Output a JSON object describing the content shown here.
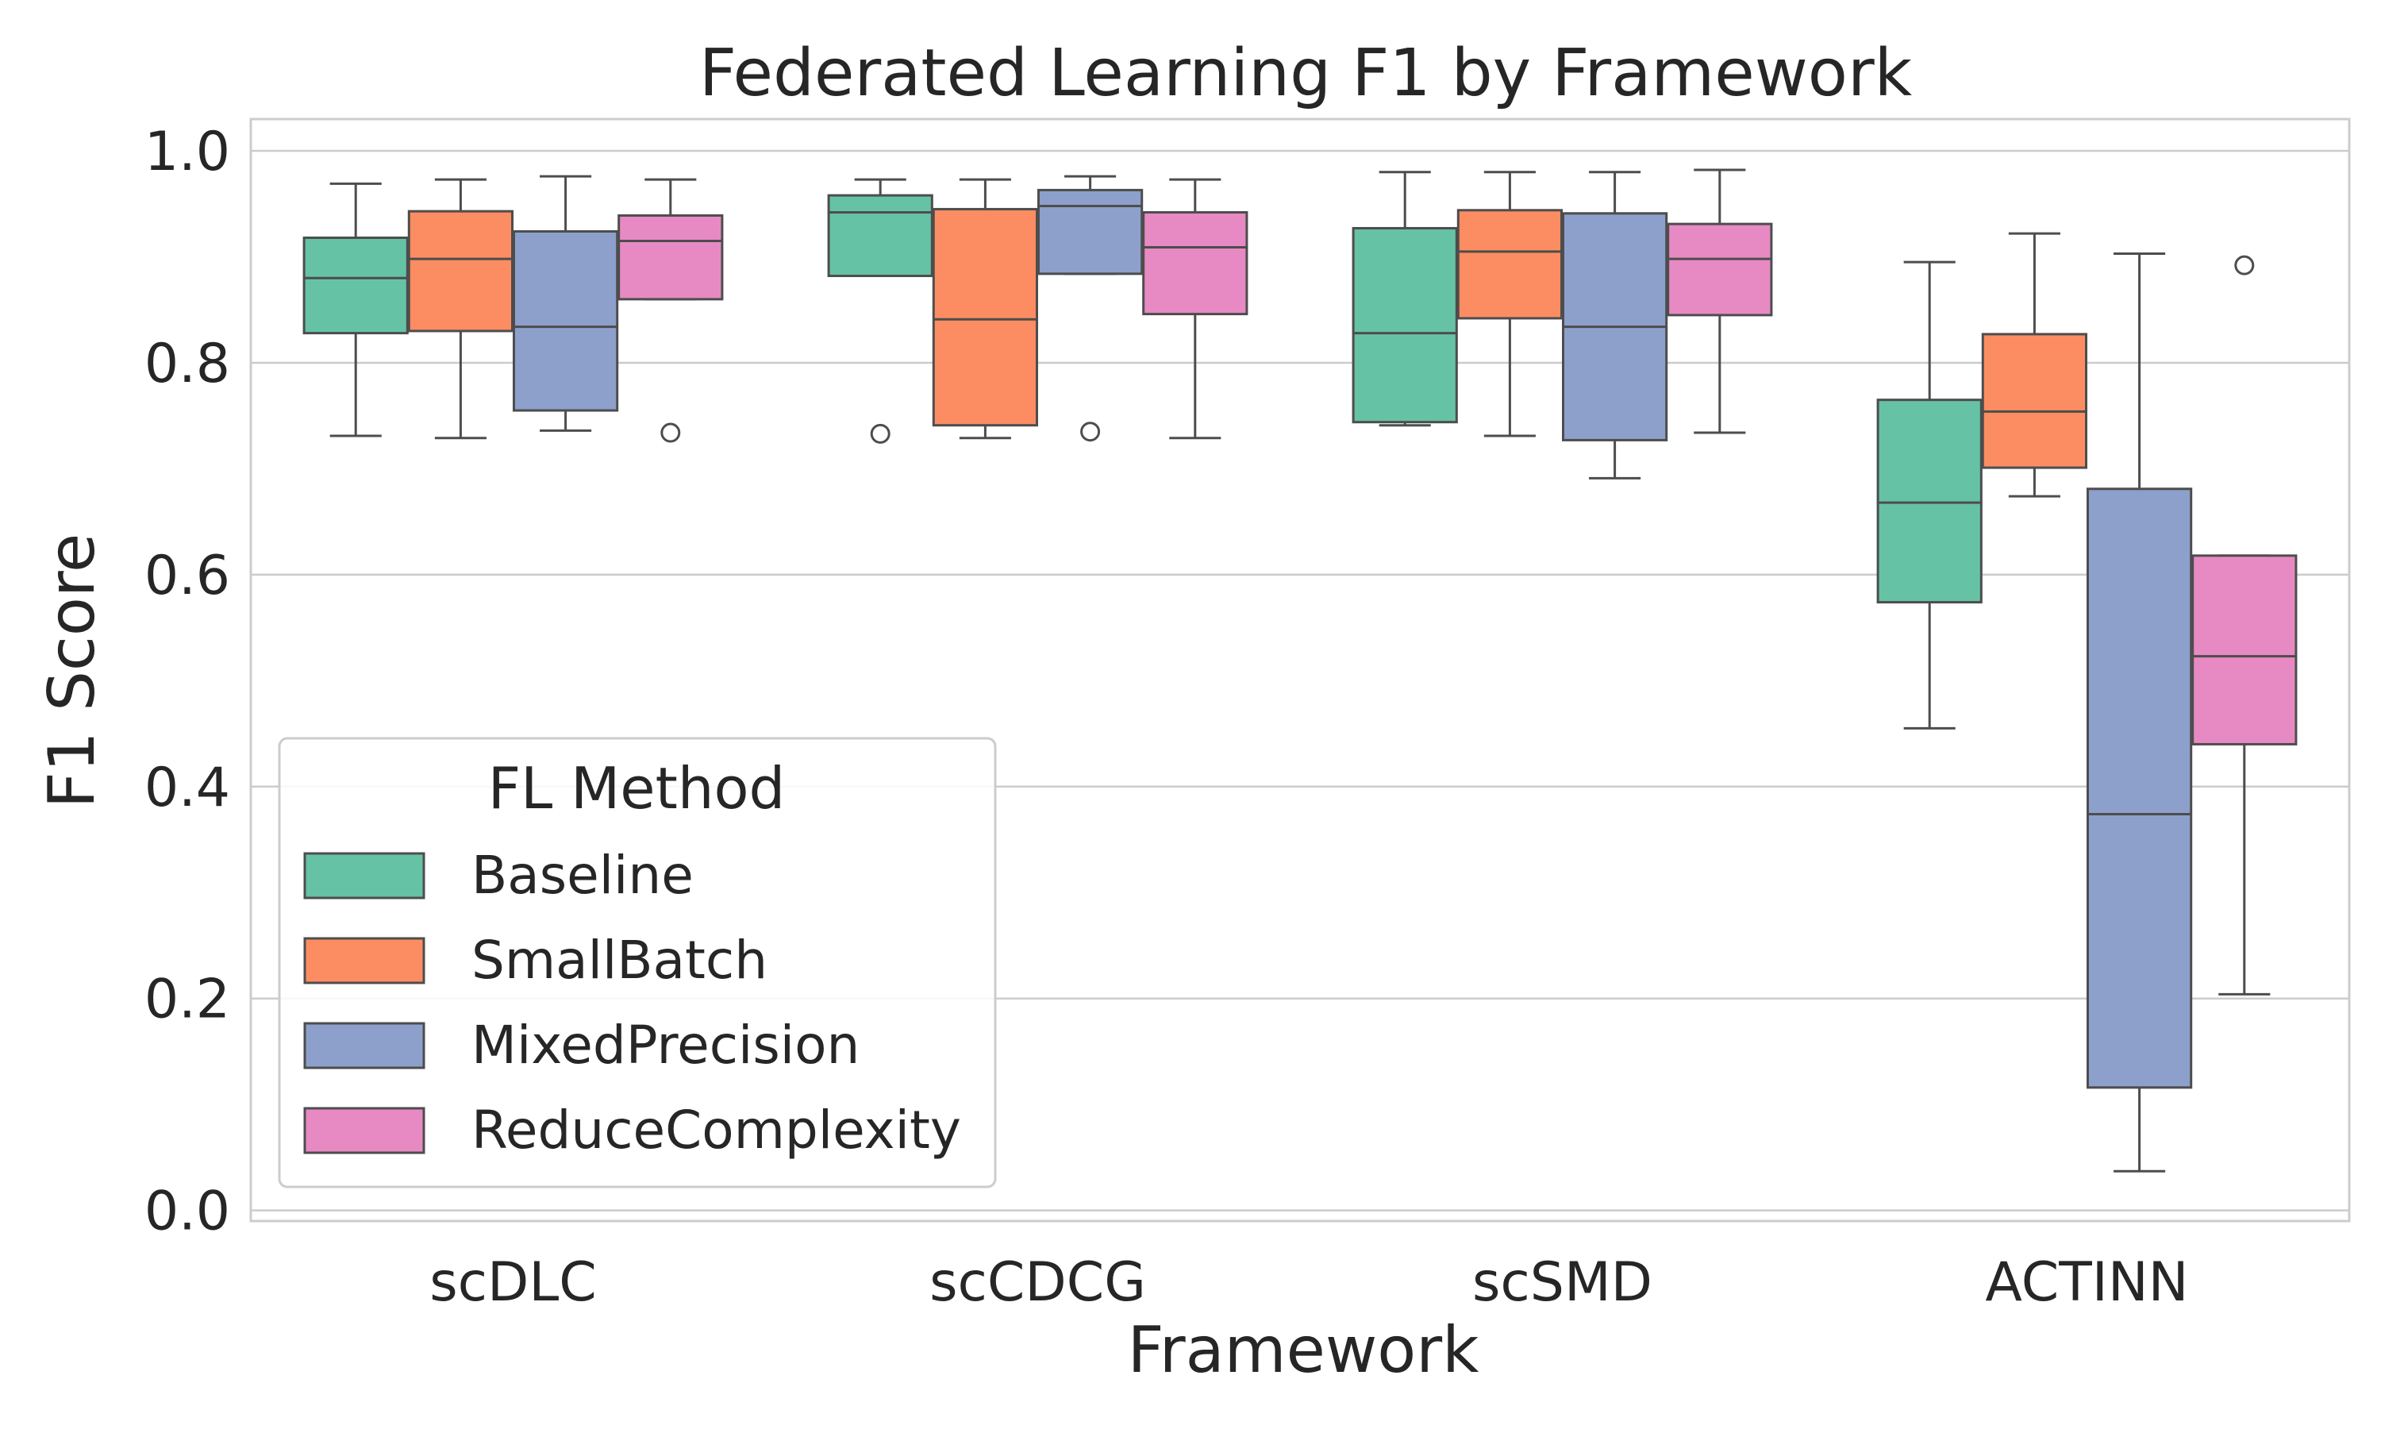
{
  "chart_data": {
    "type": "box",
    "title": "Federated Learning F1 by Framework",
    "xlabel": "Framework",
    "ylabel": "F1 Score",
    "ylim": [
      -0.01,
      1.03
    ],
    "yticks": [
      0.0,
      0.2,
      0.4,
      0.6,
      0.8,
      1.0
    ],
    "ytick_labels": [
      "0.0",
      "0.2",
      "0.4",
      "0.6",
      "0.8",
      "1.0"
    ],
    "grid": true,
    "categories": [
      "scDLC",
      "scCDCG",
      "scSMD",
      "ACTINN"
    ],
    "legend": {
      "title": "FL Method",
      "placement": "lower-left"
    },
    "series": [
      {
        "name": "Baseline",
        "color": "#66c2a5",
        "boxes": [
          {
            "whisker_low": 0.731,
            "q1": 0.828,
            "median": 0.88,
            "q3": 0.918,
            "whisker_high": 0.969,
            "outliers": []
          },
          {
            "whisker_low": 0.882,
            "q1": 0.882,
            "median": 0.942,
            "q3": 0.958,
            "whisker_high": 0.973,
            "outliers": [
              0.733
            ]
          },
          {
            "whisker_low": 0.741,
            "q1": 0.744,
            "median": 0.828,
            "q3": 0.927,
            "whisker_high": 0.98,
            "outliers": []
          },
          {
            "whisker_low": 0.455,
            "q1": 0.574,
            "median": 0.668,
            "q3": 0.765,
            "whisker_high": 0.895,
            "outliers": []
          }
        ]
      },
      {
        "name": "SmallBatch",
        "color": "#fc8d62",
        "boxes": [
          {
            "whisker_low": 0.729,
            "q1": 0.83,
            "median": 0.898,
            "q3": 0.943,
            "whisker_high": 0.973,
            "outliers": []
          },
          {
            "whisker_low": 0.729,
            "q1": 0.741,
            "median": 0.841,
            "q3": 0.945,
            "whisker_high": 0.973,
            "outliers": []
          },
          {
            "whisker_low": 0.731,
            "q1": 0.842,
            "median": 0.905,
            "q3": 0.944,
            "whisker_high": 0.98,
            "outliers": []
          },
          {
            "whisker_low": 0.674,
            "q1": 0.701,
            "median": 0.754,
            "q3": 0.827,
            "whisker_high": 0.922,
            "outliers": []
          }
        ]
      },
      {
        "name": "MixedPrecision",
        "color": "#8da0cb",
        "boxes": [
          {
            "whisker_low": 0.736,
            "q1": 0.755,
            "median": 0.834,
            "q3": 0.924,
            "whisker_high": 0.976,
            "outliers": []
          },
          {
            "whisker_low": 0.884,
            "q1": 0.884,
            "median": 0.948,
            "q3": 0.963,
            "whisker_high": 0.976,
            "outliers": [
              0.735
            ]
          },
          {
            "whisker_low": 0.691,
            "q1": 0.727,
            "median": 0.834,
            "q3": 0.941,
            "whisker_high": 0.98,
            "outliers": []
          },
          {
            "whisker_low": 0.037,
            "q1": 0.116,
            "median": 0.374,
            "q3": 0.681,
            "whisker_high": 0.903,
            "outliers": []
          }
        ]
      },
      {
        "name": "ReduceComplexity",
        "color": "#e78ac3",
        "boxes": [
          {
            "whisker_low": 0.86,
            "q1": 0.86,
            "median": 0.915,
            "q3": 0.939,
            "whisker_high": 0.973,
            "outliers": [
              0.734
            ]
          },
          {
            "whisker_low": 0.729,
            "q1": 0.846,
            "median": 0.909,
            "q3": 0.942,
            "whisker_high": 0.973,
            "outliers": []
          },
          {
            "whisker_low": 0.734,
            "q1": 0.845,
            "median": 0.898,
            "q3": 0.931,
            "whisker_high": 0.982,
            "outliers": []
          },
          {
            "whisker_low": 0.204,
            "q1": 0.44,
            "median": 0.523,
            "q3": 0.618,
            "whisker_high": 0.618,
            "outliers": [
              0.892
            ]
          }
        ]
      }
    ]
  }
}
